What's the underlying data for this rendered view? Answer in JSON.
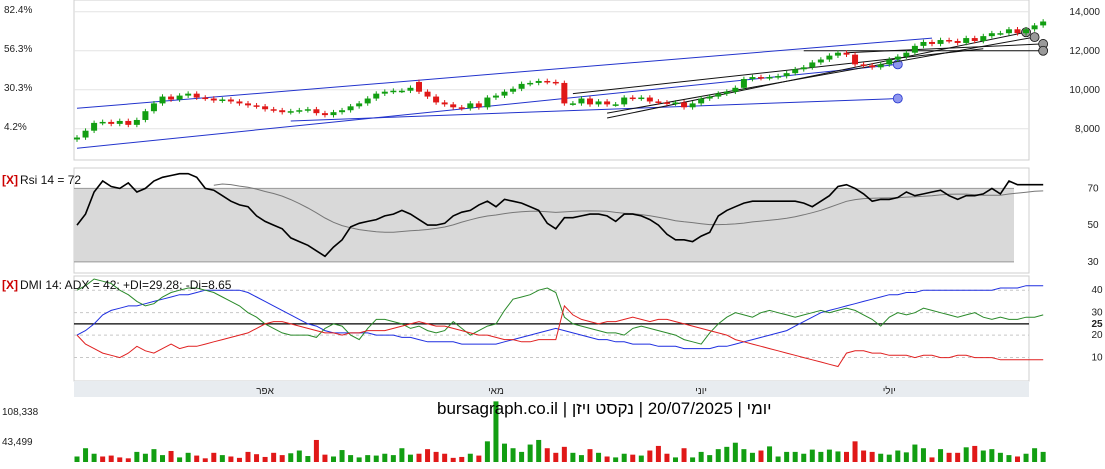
{
  "chart_data": [
    {
      "type": "candlestick",
      "name": "price",
      "ylim": [
        6500,
        14500
      ],
      "y_ticks": [
        "14,000",
        "12,000",
        "10,000",
        "8,000"
      ],
      "y_tick_values": [
        14000,
        12000,
        10000,
        8000
      ],
      "pct_ticks": [
        "82.4%",
        "56.3%",
        "30.3%",
        "4.2%"
      ],
      "pct_tick_values": [
        14100,
        12100,
        10100,
        8100
      ],
      "close": [
        7550,
        7900,
        8300,
        8350,
        8250,
        8400,
        8200,
        8450,
        8900,
        9300,
        9650,
        9500,
        9700,
        9800,
        9600,
        9550,
        9450,
        9500,
        9400,
        9300,
        9200,
        9150,
        9000,
        8950,
        8850,
        8900,
        8950,
        9000,
        8800,
        8700,
        8850,
        8950,
        9150,
        9300,
        9550,
        9800,
        9900,
        9950,
        9950,
        10100,
        9900,
        9650,
        9350,
        9250,
        9100,
        9050,
        9300,
        9100,
        9600,
        9700,
        9900,
        10050,
        10300,
        10350,
        10450,
        10400,
        10350,
        9300,
        9300,
        9550,
        9250,
        9400,
        9250,
        9250,
        9600,
        9550,
        9600,
        9400,
        9350,
        9300,
        9350,
        9100,
        9300,
        9550,
        9650,
        9800,
        9900,
        10100,
        10550,
        10650,
        10600,
        10650,
        10700,
        10850,
        11050,
        11150,
        11400,
        11550,
        11750,
        11900,
        11800,
        11300,
        11250,
        11150,
        11300,
        11550,
        11700,
        11900,
        12250,
        12450,
        12350,
        12550,
        12500,
        12400,
        12650,
        12500,
        12750,
        12900,
        12900,
        13100,
        12900,
        13100,
        13300,
        13500
      ],
      "open": [
        7450,
        7550,
        7900,
        8300,
        8350,
        8250,
        8400,
        8200,
        8450,
        8900,
        9300,
        9650,
        9500,
        9700,
        9800,
        9600,
        9550,
        9450,
        9500,
        9400,
        9300,
        9200,
        9150,
        9000,
        8950,
        8850,
        8900,
        8950,
        9000,
        8800,
        8700,
        8850,
        8950,
        9150,
        9300,
        9550,
        9800,
        9900,
        9950,
        9950,
        10400,
        9900,
        9650,
        9350,
        9250,
        9100,
        9050,
        9300,
        9100,
        9600,
        9700,
        9900,
        10050,
        10300,
        10350,
        10450,
        10400,
        10350,
        9300,
        9300,
        9550,
        9250,
        9400,
        9250,
        9250,
        9600,
        9550,
        9600,
        9400,
        9350,
        9300,
        9350,
        9100,
        9300,
        9550,
        9650,
        9800,
        9900,
        10100,
        10550,
        10650,
        10600,
        10650,
        10700,
        10850,
        11050,
        11150,
        11400,
        11550,
        11750,
        11900,
        11800,
        11300,
        11250,
        11150,
        11300,
        11550,
        11700,
        11900,
        12250,
        12450,
        12350,
        12550,
        12500,
        12400,
        12650,
        12500,
        12750,
        12900,
        12900,
        13100,
        12900,
        13100,
        13300
      ],
      "channels": [
        {
          "from": [
            0,
            7000
          ],
          "to": [
            96,
            11300
          ],
          "color": "#2233cc",
          "end_marker": true
        },
        {
          "from": [
            0,
            9050
          ],
          "to": [
            100,
            12650
          ],
          "color": "#2233cc",
          "end_marker": false
        },
        {
          "from": [
            25,
            8400
          ],
          "to": [
            96,
            9550
          ],
          "color": "#2233cc",
          "end_marker": true
        },
        {
          "from": [
            58,
            9800
          ],
          "to": [
            106,
            12100
          ],
          "color": "#111111",
          "end_marker": false
        },
        {
          "from": [
            62,
            8550
          ],
          "to": [
            111,
            12950
          ],
          "color": "#111111",
          "end_marker": true
        },
        {
          "from": [
            62,
            8800
          ],
          "to": [
            112,
            12700
          ],
          "color": "#111111",
          "end_marker": true
        },
        {
          "from": [
            90,
            11900
          ],
          "to": [
            113,
            12350
          ],
          "color": "#111111",
          "end_marker": true
        },
        {
          "from": [
            85,
            12000
          ],
          "to": [
            113,
            12000
          ],
          "color": "#111111",
          "end_marker": true
        }
      ]
    },
    {
      "type": "line",
      "name": "rsi",
      "title": "Rsi 14 = 72",
      "ylim": [
        25,
        80
      ],
      "y_ticks": [
        "70",
        "50",
        "30"
      ],
      "y_tick_values": [
        70,
        50,
        30
      ],
      "band": [
        30,
        70
      ],
      "series": [
        {
          "values": [
            50,
            56,
            68,
            74,
            71,
            70,
            73,
            68,
            70,
            74,
            76,
            77,
            78,
            78,
            76,
            70,
            69,
            66,
            63,
            61,
            60,
            55,
            52,
            50,
            48,
            43,
            41,
            39,
            36,
            33,
            38,
            42,
            49,
            51,
            52,
            53,
            55,
            56,
            58,
            56,
            53,
            50,
            50,
            51,
            55,
            57,
            58,
            61,
            63,
            60,
            64,
            63,
            62,
            60,
            58,
            51,
            48,
            54,
            54,
            55,
            56,
            56,
            55,
            52,
            56,
            56,
            55,
            53,
            50,
            45,
            42,
            42,
            41,
            44,
            46,
            55,
            58,
            60,
            62,
            63,
            63,
            63,
            63,
            63,
            63,
            62,
            60,
            63,
            66,
            71,
            72,
            70,
            67,
            63,
            64,
            64,
            65,
            68,
            66,
            67,
            68,
            69,
            66,
            64,
            66,
            66,
            67,
            70,
            67,
            74,
            72,
            72,
            72,
            72
          ]
        },
        {
          "values": [
            null,
            null,
            null,
            null,
            null,
            null,
            null,
            null,
            null,
            null,
            null,
            null,
            null,
            null,
            null,
            null,
            null,
            null,
            null,
            null,
            null,
            null,
            null,
            null,
            null,
            null,
            null,
            null,
            null,
            null,
            null,
            null,
            null,
            null,
            null,
            null,
            null,
            null,
            null,
            null,
            null,
            null,
            null,
            null,
            null,
            null,
            null,
            null,
            null,
            null,
            null,
            null,
            null,
            null,
            null,
            null,
            null,
            null,
            null,
            null,
            null,
            null,
            null,
            null,
            null,
            null,
            null,
            null,
            null,
            null,
            null,
            null,
            null,
            null,
            null,
            null,
            null,
            null,
            null,
            null,
            null,
            null,
            null,
            null,
            null,
            null,
            null,
            null,
            null,
            null,
            null,
            null,
            null,
            null,
            null,
            null,
            null,
            null,
            null,
            null,
            null,
            null,
            null,
            null,
            null,
            null,
            null,
            null,
            null,
            null,
            null,
            null,
            null,
            null
          ]
        }
      ],
      "series_colors": [
        "#000000",
        "#777777"
      ]
    },
    {
      "type": "line",
      "name": "dmi",
      "title": "DMI 14: ADX = 42; +DI=29.28; -Di=8.65",
      "ylim": [
        0,
        45
      ],
      "y_ticks": [
        "40",
        "30",
        "25",
        "20",
        "10"
      ],
      "y_tick_values": [
        40,
        30,
        25,
        20,
        10
      ],
      "ref_line": 25,
      "x_ticks": [
        "אפר",
        "מאי",
        "יוני",
        "יולי"
      ],
      "x_tick_index": [
        22,
        49,
        73,
        95
      ],
      "series": [
        {
          "name": "ADX",
          "color": "#1f2fe0",
          "values": [
            20,
            22,
            25,
            29,
            31,
            32,
            33,
            33,
            34,
            35,
            36,
            37,
            38,
            38,
            39,
            40,
            40,
            40,
            40,
            40,
            39,
            37,
            35,
            33,
            31,
            29,
            27,
            25,
            24,
            22,
            21,
            21,
            21,
            21,
            21,
            20,
            20,
            20,
            19,
            19,
            18,
            17,
            17,
            17,
            17,
            16,
            16,
            16,
            16,
            16,
            17,
            18,
            19,
            20,
            21,
            22,
            23,
            22,
            21,
            20,
            19,
            18,
            18,
            17,
            17,
            16,
            16,
            16,
            15,
            15,
            15,
            14,
            14,
            14,
            14,
            15,
            15,
            16,
            17,
            18,
            19,
            20,
            21,
            22,
            24,
            26,
            28,
            30,
            31,
            32,
            33,
            34,
            35,
            36,
            37,
            38,
            38,
            39,
            39,
            40,
            40,
            40,
            40,
            40,
            40,
            40,
            40,
            40,
            41,
            41,
            41,
            42,
            42,
            42
          ]
        },
        {
          "name": "+DI",
          "color": "#2a8a2a",
          "values": [
            40,
            42,
            45,
            44,
            43,
            40,
            38,
            35,
            33,
            34,
            37,
            39,
            40,
            41,
            41,
            40,
            39,
            37,
            35,
            33,
            30,
            28,
            25,
            23,
            21,
            20,
            20,
            20,
            19,
            23,
            25,
            24,
            20,
            18,
            23,
            27,
            27,
            26,
            25,
            23,
            24,
            22,
            21,
            22,
            26,
            23,
            20,
            22,
            24,
            25,
            31,
            36,
            37,
            38,
            40,
            41,
            39,
            28,
            25,
            24,
            23,
            22,
            21,
            21,
            20,
            23,
            24,
            23,
            22,
            21,
            20,
            18,
            17,
            16,
            21,
            25,
            28,
            30,
            29,
            28,
            30,
            31,
            30,
            29,
            28,
            29,
            30,
            31,
            30,
            31,
            32,
            31,
            29,
            27,
            24,
            28,
            30,
            29,
            30,
            32,
            31,
            30,
            29,
            28,
            29,
            30,
            28,
            27,
            28,
            27,
            27,
            28,
            28,
            29
          ]
        },
        {
          "name": "-DI",
          "color": "#e02020",
          "values": [
            20,
            16,
            14,
            12,
            11,
            10,
            12,
            15,
            13,
            12,
            14,
            16,
            14,
            15,
            15,
            16,
            17,
            18,
            19,
            20,
            21,
            23,
            25,
            26,
            26,
            25,
            24,
            23,
            22,
            21,
            21,
            20,
            21,
            21,
            22,
            22,
            22,
            23,
            24,
            25,
            26,
            25,
            24,
            24,
            23,
            22,
            21,
            20,
            20,
            19,
            18,
            18,
            17,
            17,
            18,
            18,
            18,
            33,
            29,
            27,
            26,
            25,
            26,
            26,
            27,
            28,
            27,
            26,
            27,
            27,
            26,
            25,
            24,
            23,
            22,
            21,
            20,
            18,
            17,
            16,
            15,
            14,
            13,
            12,
            11,
            10,
            9,
            8,
            7,
            6,
            12,
            13,
            13,
            12,
            12,
            11,
            11,
            11,
            10,
            11,
            11,
            10,
            10,
            11,
            11,
            10,
            10,
            10,
            9,
            9,
            9,
            9,
            9,
            9
          ]
        }
      ]
    },
    {
      "type": "bar",
      "name": "volume",
      "title": "יומי | 20/07/2025 | נקסט ויזן | bursagraph.co.il",
      "ylim": [
        0,
        135000
      ],
      "y_ticks": [
        "108,338",
        "43,499"
      ],
      "y_tick_values": [
        108338,
        43499
      ],
      "values": [
        12000,
        30000,
        18000,
        12000,
        14000,
        10000,
        8000,
        22000,
        18000,
        28000,
        15000,
        24000,
        10000,
        20000,
        14000,
        8000,
        20000,
        15000,
        12000,
        9000,
        22000,
        17000,
        11000,
        20000,
        15000,
        19000,
        25000,
        13000,
        48000,
        16000,
        12000,
        26000,
        15000,
        10000,
        15000,
        14000,
        18000,
        15000,
        30000,
        16000,
        18000,
        28000,
        22000,
        18000,
        9000,
        11000,
        18000,
        14000,
        45000,
        132000,
        40000,
        30000,
        22000,
        38000,
        48000,
        30000,
        20000,
        33000,
        20000,
        15000,
        28000,
        20000,
        12000,
        10000,
        18000,
        16000,
        14000,
        25000,
        35000,
        18000,
        10000,
        30000,
        10000,
        22000,
        15000,
        28000,
        33000,
        42000,
        28000,
        20000,
        25000,
        34000,
        12000,
        22000,
        22000,
        18000,
        27000,
        22000,
        27000,
        23000,
        22000,
        45000,
        25000,
        22000,
        18000,
        16000,
        25000,
        21000,
        38000,
        30000,
        10000,
        28000,
        20000,
        20000,
        32000,
        35000,
        25000,
        28000,
        20000,
        15000,
        12000,
        18000,
        30000,
        22000
      ],
      "colors": [
        "g",
        "g",
        "g",
        "r",
        "r",
        "r",
        "r",
        "g",
        "g",
        "g",
        "g",
        "r",
        "g",
        "g",
        "r",
        "r",
        "r",
        "g",
        "r",
        "r",
        "r",
        "r",
        "r",
        "r",
        "r",
        "g",
        "g",
        "g",
        "r",
        "r",
        "g",
        "g",
        "g",
        "g",
        "g",
        "g",
        "g",
        "g",
        "g",
        "g",
        "r",
        "r",
        "r",
        "r",
        "r",
        "r",
        "g",
        "r",
        "g",
        "g",
        "g",
        "g",
        "g",
        "g",
        "g",
        "r",
        "r",
        "r",
        "g",
        "g",
        "r",
        "g",
        "r",
        "g",
        "g",
        "r",
        "g",
        "r",
        "r",
        "r",
        "g",
        "r",
        "g",
        "g",
        "g",
        "g",
        "g",
        "g",
        "g",
        "g",
        "r",
        "g",
        "g",
        "g",
        "g",
        "g",
        "g",
        "g",
        "g",
        "g",
        "r",
        "r",
        "r",
        "r",
        "g",
        "g",
        "g",
        "g",
        "g",
        "g",
        "r",
        "g",
        "r",
        "r",
        "g",
        "r",
        "g",
        "g",
        "g",
        "g",
        "r",
        "g",
        "g",
        "g"
      ]
    }
  ]
}
